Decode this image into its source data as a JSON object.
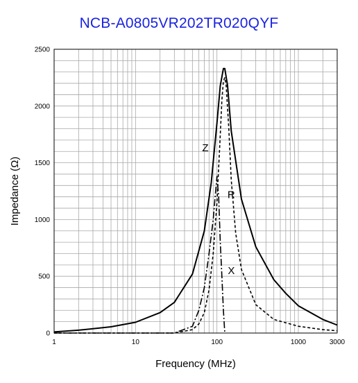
{
  "chart_data": {
    "type": "line",
    "title": "NCB-A0805VR202TR020QYF",
    "xlabel": "Frequency (MHz)",
    "ylabel": "Impedance (Ω)",
    "x_scale": "log",
    "xlim": [
      1,
      3000
    ],
    "ylim": [
      0,
      2500
    ],
    "grid": true,
    "x_ticks": [
      {
        "value": 1,
        "label": "1"
      },
      {
        "value": 10,
        "label": "10"
      },
      {
        "value": 100,
        "label": "100"
      },
      {
        "value": 1000,
        "label": "1000"
      },
      {
        "value": 3000,
        "label": "3000"
      }
    ],
    "y_ticks": [
      {
        "value": 0,
        "label": "0"
      },
      {
        "value": 500,
        "label": "500"
      },
      {
        "value": 1000,
        "label": "1000"
      },
      {
        "value": 1500,
        "label": "1500"
      },
      {
        "value": 2000,
        "label": "2000"
      },
      {
        "value": 2500,
        "label": "2500"
      }
    ],
    "series": [
      {
        "name": "Z",
        "style": "solid",
        "points": [
          [
            1,
            10
          ],
          [
            2,
            25
          ],
          [
            5,
            55
          ],
          [
            10,
            95
          ],
          [
            20,
            180
          ],
          [
            30,
            270
          ],
          [
            50,
            520
          ],
          [
            70,
            900
          ],
          [
            85,
            1320
          ],
          [
            100,
            1850
          ],
          [
            110,
            2180
          ],
          [
            120,
            2330
          ],
          [
            125,
            2330
          ],
          [
            135,
            2180
          ],
          [
            150,
            1780
          ],
          [
            200,
            1180
          ],
          [
            300,
            760
          ],
          [
            500,
            470
          ],
          [
            700,
            350
          ],
          [
            1000,
            240
          ],
          [
            2000,
            120
          ],
          [
            3000,
            70
          ]
        ]
      },
      {
        "name": "R",
        "style": "dashed",
        "points": [
          [
            1,
            0
          ],
          [
            30,
            0
          ],
          [
            50,
            30
          ],
          [
            60,
            80
          ],
          [
            70,
            180
          ],
          [
            80,
            380
          ],
          [
            90,
            700
          ],
          [
            100,
            1150
          ],
          [
            110,
            1750
          ],
          [
            115,
            2050
          ],
          [
            120,
            2220
          ],
          [
            125,
            2250
          ],
          [
            130,
            2180
          ],
          [
            140,
            1800
          ],
          [
            150,
            1350
          ],
          [
            170,
            880
          ],
          [
            200,
            560
          ],
          [
            300,
            250
          ],
          [
            500,
            120
          ],
          [
            1000,
            60
          ],
          [
            2000,
            30
          ],
          [
            3000,
            20
          ]
        ]
      },
      {
        "name": "X",
        "style": "dashdot",
        "points": [
          [
            1,
            0
          ],
          [
            30,
            0
          ],
          [
            50,
            60
          ],
          [
            60,
            200
          ],
          [
            70,
            400
          ],
          [
            80,
            700
          ],
          [
            90,
            1000
          ],
          [
            95,
            1200
          ],
          [
            100,
            1380
          ],
          [
            105,
            1200
          ],
          [
            110,
            800
          ],
          [
            115,
            500
          ],
          [
            120,
            200
          ],
          [
            125,
            0
          ]
        ]
      }
    ],
    "annotations": [
      {
        "text": "Z",
        "x": 72,
        "y": 1600
      },
      {
        "text": "R",
        "x": 150,
        "y": 1190
      },
      {
        "text": "X",
        "x": 150,
        "y": 520
      }
    ]
  }
}
